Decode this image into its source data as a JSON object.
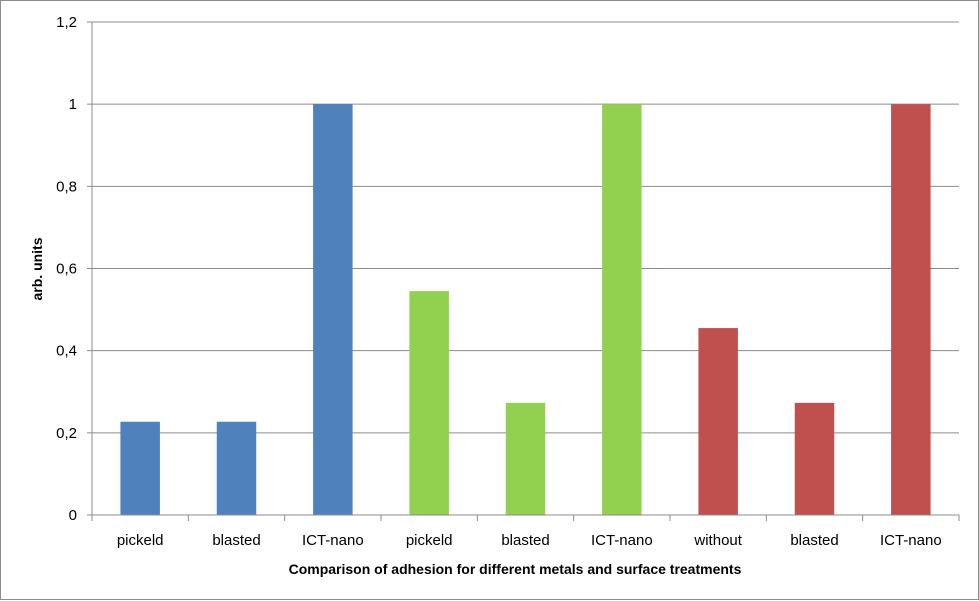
{
  "chart_data": {
    "type": "bar",
    "title": "",
    "xlabel": "Comparison of adhesion for different metals and surface treatments",
    "ylabel": "arb. units",
    "ylim": [
      0,
      1.2
    ],
    "yticks": [
      "0",
      "0,2",
      "0,4",
      "0,6",
      "0,8",
      "1",
      "1,2"
    ],
    "grid": true,
    "legend": "none",
    "categories": [
      "pickeld",
      "blasted",
      "ICT-nano",
      "pickeld",
      "blasted",
      "ICT-nano",
      "without",
      "blasted",
      "ICT-nano"
    ],
    "values": [
      0.227,
      0.227,
      1.0,
      0.545,
      0.273,
      1.0,
      0.455,
      0.273,
      1.0
    ],
    "colors": [
      "#4f81bd",
      "#4f81bd",
      "#4f81bd",
      "#92d050",
      "#92d050",
      "#92d050",
      "#c0504d",
      "#c0504d",
      "#c0504d"
    ]
  }
}
